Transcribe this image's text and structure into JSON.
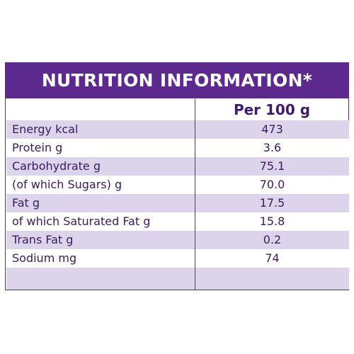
{
  "title": "NUTRITION INFORMATION*",
  "column_header": "Per 100 g",
  "rows": [
    {
      "label": "Energy kcal",
      "value": "473"
    },
    {
      "label": "Protein g",
      "value": "3.6"
    },
    {
      "label": "Carbohydrate g",
      "value": "75.1"
    },
    {
      "label": "(of which Sugars) g",
      "value": "70.0"
    },
    {
      "label": "Fat g",
      "value": "17.5"
    },
    {
      "label": "of which Saturated Fat g",
      "value": "15.8"
    },
    {
      "label": "Trans Fat g",
      "value": "0.2"
    },
    {
      "label": "Sodium mg",
      "value": "74"
    }
  ],
  "colors": {
    "header_bg": "#5c2a8e",
    "shaded_row": "#dcd4ea",
    "text": "#3a1a5e"
  }
}
